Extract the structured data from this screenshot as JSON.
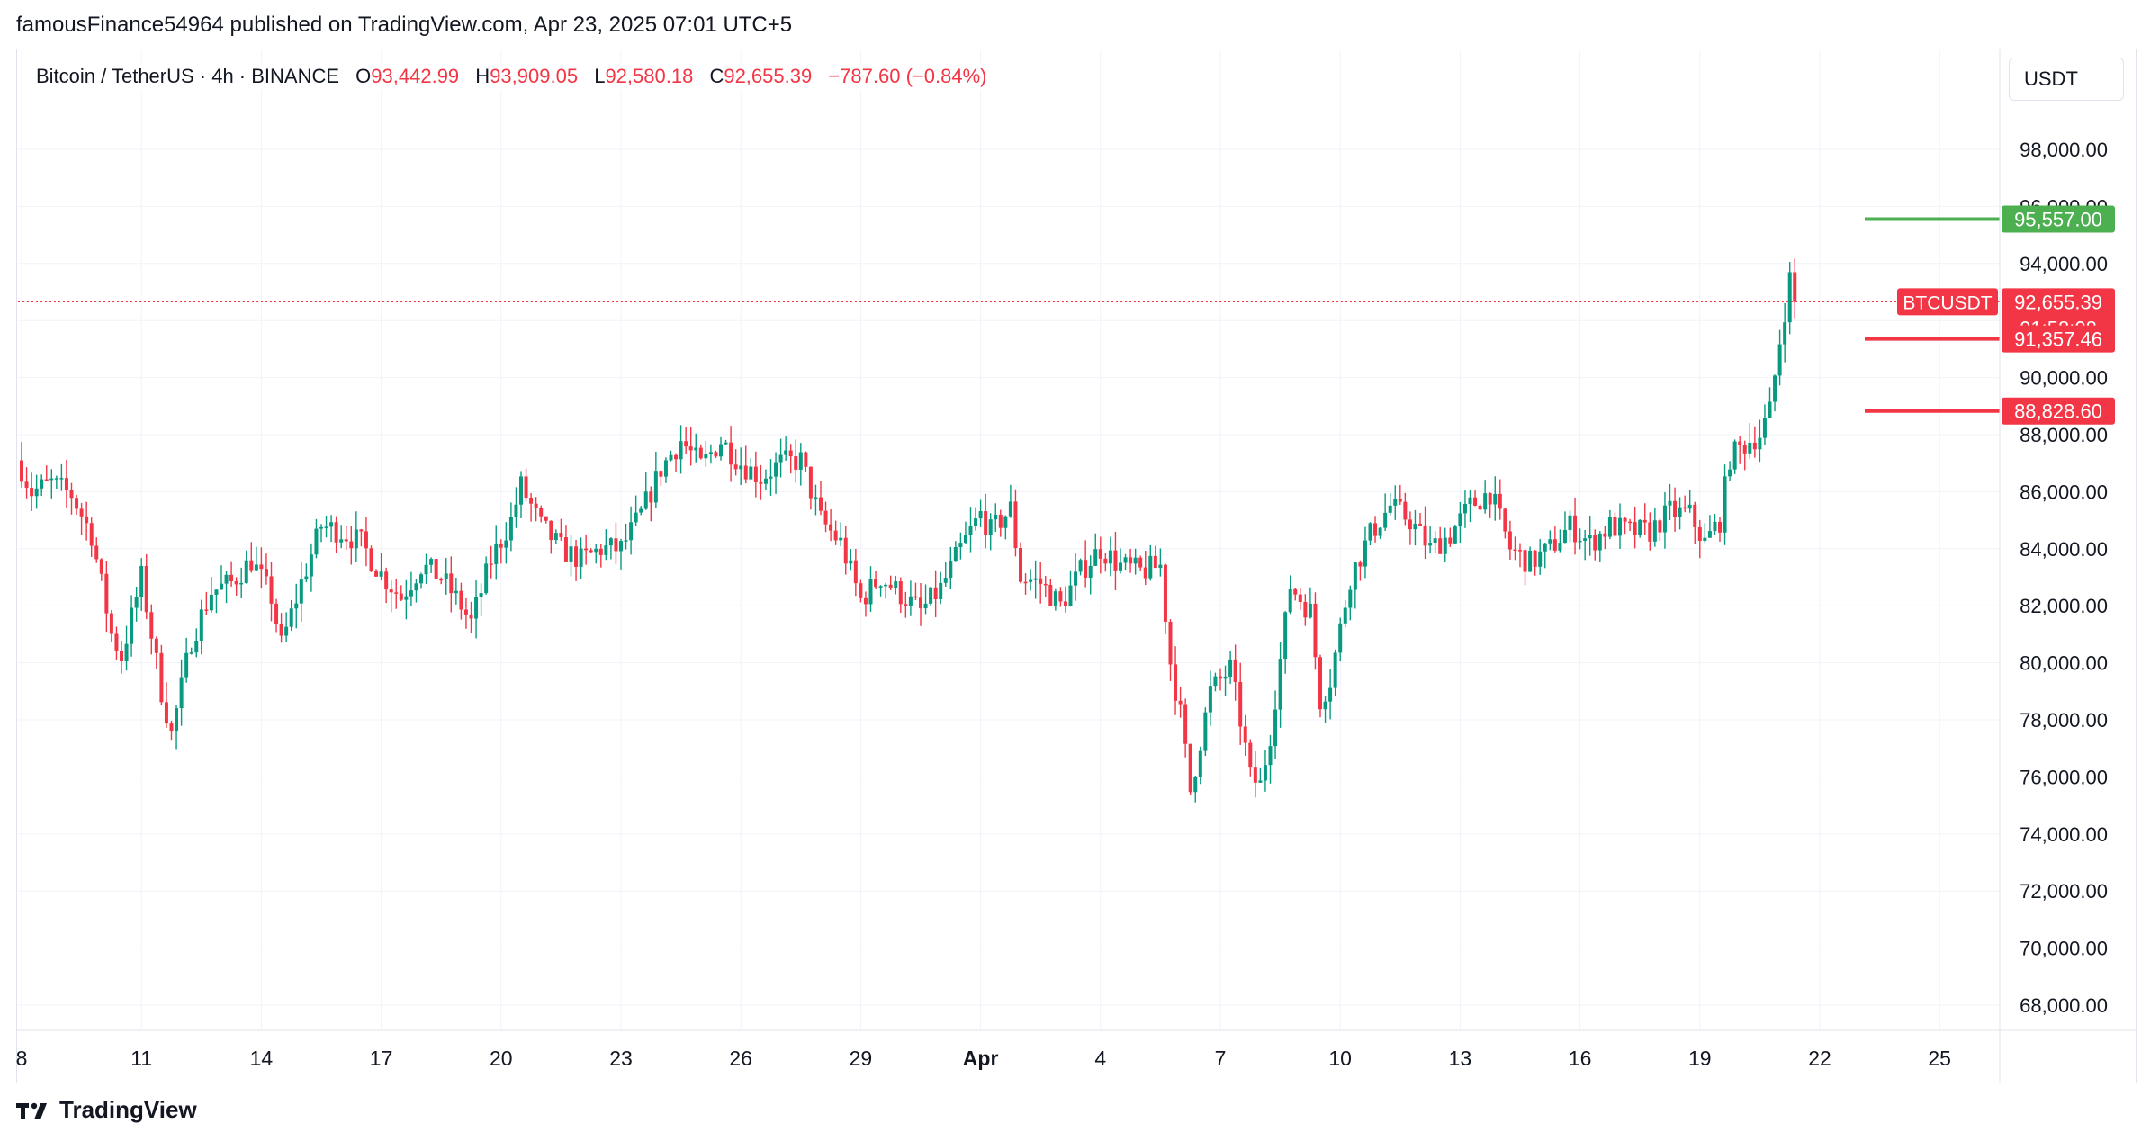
{
  "header": {
    "publisher_line": "famousFinance54964 published on TradingView.com, Apr 23, 2025 07:01 UTC+5"
  },
  "legend": {
    "symbol": "Bitcoin / TetherUS · 4h · BINANCE",
    "open_label": "O",
    "open": "93,442.99",
    "high_label": "H",
    "high": "93,909.05",
    "low_label": "L",
    "low": "92,580.18",
    "close_label": "C",
    "close": "92,655.39",
    "change": "−787.60 (−0.84%)"
  },
  "currency": "USDT",
  "footer": {
    "brand": "TradingView"
  },
  "colors": {
    "up": "#089981",
    "down": "#f23645",
    "green_level": "#4caf50",
    "text": "#131722",
    "grid": "#f0f3fa"
  },
  "chart_data": {
    "type": "candlestick",
    "interval": "4h",
    "ylim": [
      67000,
      100000
    ],
    "yticks": [
      "98,000.00",
      "96,000.00",
      "94,000.00",
      "92,000.00",
      "90,000.00",
      "88,000.00",
      "86,000.00",
      "84,000.00",
      "82,000.00",
      "80,000.00",
      "78,000.00",
      "76,000.00",
      "74,000.00",
      "72,000.00",
      "70,000.00",
      "68,000.00"
    ],
    "ytick_values": [
      98000,
      96000,
      94000,
      92000,
      90000,
      88000,
      86000,
      84000,
      82000,
      80000,
      78000,
      76000,
      74000,
      72000,
      70000,
      68000
    ],
    "xticks": [
      "8",
      "11",
      "14",
      "17",
      "20",
      "23",
      "26",
      "29",
      "Apr",
      "4",
      "7",
      "10",
      "13",
      "16",
      "19",
      "22",
      "25"
    ],
    "xtick_bold": [
      false,
      false,
      false,
      false,
      false,
      false,
      false,
      false,
      true,
      false,
      false,
      false,
      false,
      false,
      false,
      false,
      false
    ],
    "grid": true,
    "last_price": 92655.39,
    "price_labels": [
      {
        "text": "95,557.00",
        "value": 95557.0,
        "color": "#4caf50",
        "line": true
      },
      {
        "text": "92,655.39",
        "value": 92655.39,
        "color": "#f23645",
        "line": false,
        "symbol": "BTCUSDT",
        "countdown": "01:58:08"
      },
      {
        "text": "91,357.46",
        "value": 91357.46,
        "color": "#f23645",
        "line": true
      },
      {
        "text": "88,828.60",
        "value": 88828.6,
        "color": "#f23645",
        "line": true
      }
    ],
    "keypoints": [
      [
        0,
        86800
      ],
      [
        2,
        86000
      ],
      [
        6,
        86300
      ],
      [
        10,
        85900
      ],
      [
        14,
        84500
      ],
      [
        18,
        81000
      ],
      [
        20,
        80200
      ],
      [
        24,
        83000
      ],
      [
        28,
        79000
      ],
      [
        30,
        77500
      ],
      [
        34,
        80800
      ],
      [
        38,
        82500
      ],
      [
        42,
        82800
      ],
      [
        46,
        83600
      ],
      [
        50,
        82300
      ],
      [
        52,
        80600
      ],
      [
        56,
        82800
      ],
      [
        60,
        84800
      ],
      [
        64,
        84600
      ],
      [
        68,
        84200
      ],
      [
        72,
        83100
      ],
      [
        76,
        82300
      ],
      [
        80,
        83400
      ],
      [
        84,
        83000
      ],
      [
        88,
        82000
      ],
      [
        90,
        81400
      ],
      [
        94,
        83600
      ],
      [
        98,
        85000
      ],
      [
        100,
        86200
      ],
      [
        104,
        84800
      ],
      [
        108,
        84000
      ],
      [
        112,
        83600
      ],
      [
        116,
        84000
      ],
      [
        120,
        84000
      ],
      [
        124,
        85200
      ],
      [
        128,
        86800
      ],
      [
        132,
        87800
      ],
      [
        136,
        86900
      ],
      [
        140,
        87800
      ],
      [
        144,
        87000
      ],
      [
        148,
        86500
      ],
      [
        152,
        87000
      ],
      [
        156,
        87100
      ],
      [
        160,
        85000
      ],
      [
        164,
        84200
      ],
      [
        168,
        82200
      ],
      [
        172,
        83000
      ],
      [
        176,
        82400
      ],
      [
        180,
        81800
      ],
      [
        184,
        82600
      ],
      [
        188,
        84000
      ],
      [
        192,
        85200
      ],
      [
        194,
        84600
      ],
      [
        198,
        85400
      ],
      [
        200,
        83000
      ],
      [
        204,
        82800
      ],
      [
        208,
        82000
      ],
      [
        212,
        83200
      ],
      [
        216,
        84000
      ],
      [
        220,
        83400
      ],
      [
        224,
        83200
      ],
      [
        228,
        83400
      ],
      [
        230,
        80000
      ],
      [
        232,
        78200
      ],
      [
        234,
        75500
      ],
      [
        238,
        79000
      ],
      [
        242,
        79800
      ],
      [
        244,
        78000
      ],
      [
        246,
        76000
      ],
      [
        248,
        75700
      ],
      [
        250,
        77500
      ],
      [
        254,
        82700
      ],
      [
        258,
        81800
      ],
      [
        260,
        78700
      ],
      [
        262,
        79400
      ],
      [
        266,
        83000
      ],
      [
        270,
        84500
      ],
      [
        274,
        85500
      ],
      [
        278,
        85000
      ],
      [
        282,
        84000
      ],
      [
        286,
        84500
      ],
      [
        290,
        85500
      ],
      [
        294,
        86000
      ],
      [
        298,
        84000
      ],
      [
        302,
        83500
      ],
      [
        306,
        84000
      ],
      [
        310,
        84800
      ],
      [
        314,
        84200
      ],
      [
        318,
        84800
      ],
      [
        322,
        84600
      ],
      [
        326,
        84600
      ],
      [
        330,
        85300
      ],
      [
        334,
        85200
      ],
      [
        337,
        84200
      ],
      [
        340,
        85000
      ],
      [
        342,
        87200
      ],
      [
        346,
        87800
      ],
      [
        348,
        88000
      ],
      [
        350,
        88800
      ],
      [
        352,
        91300
      ],
      [
        354,
        93450
      ],
      [
        355,
        92655
      ]
    ]
  }
}
